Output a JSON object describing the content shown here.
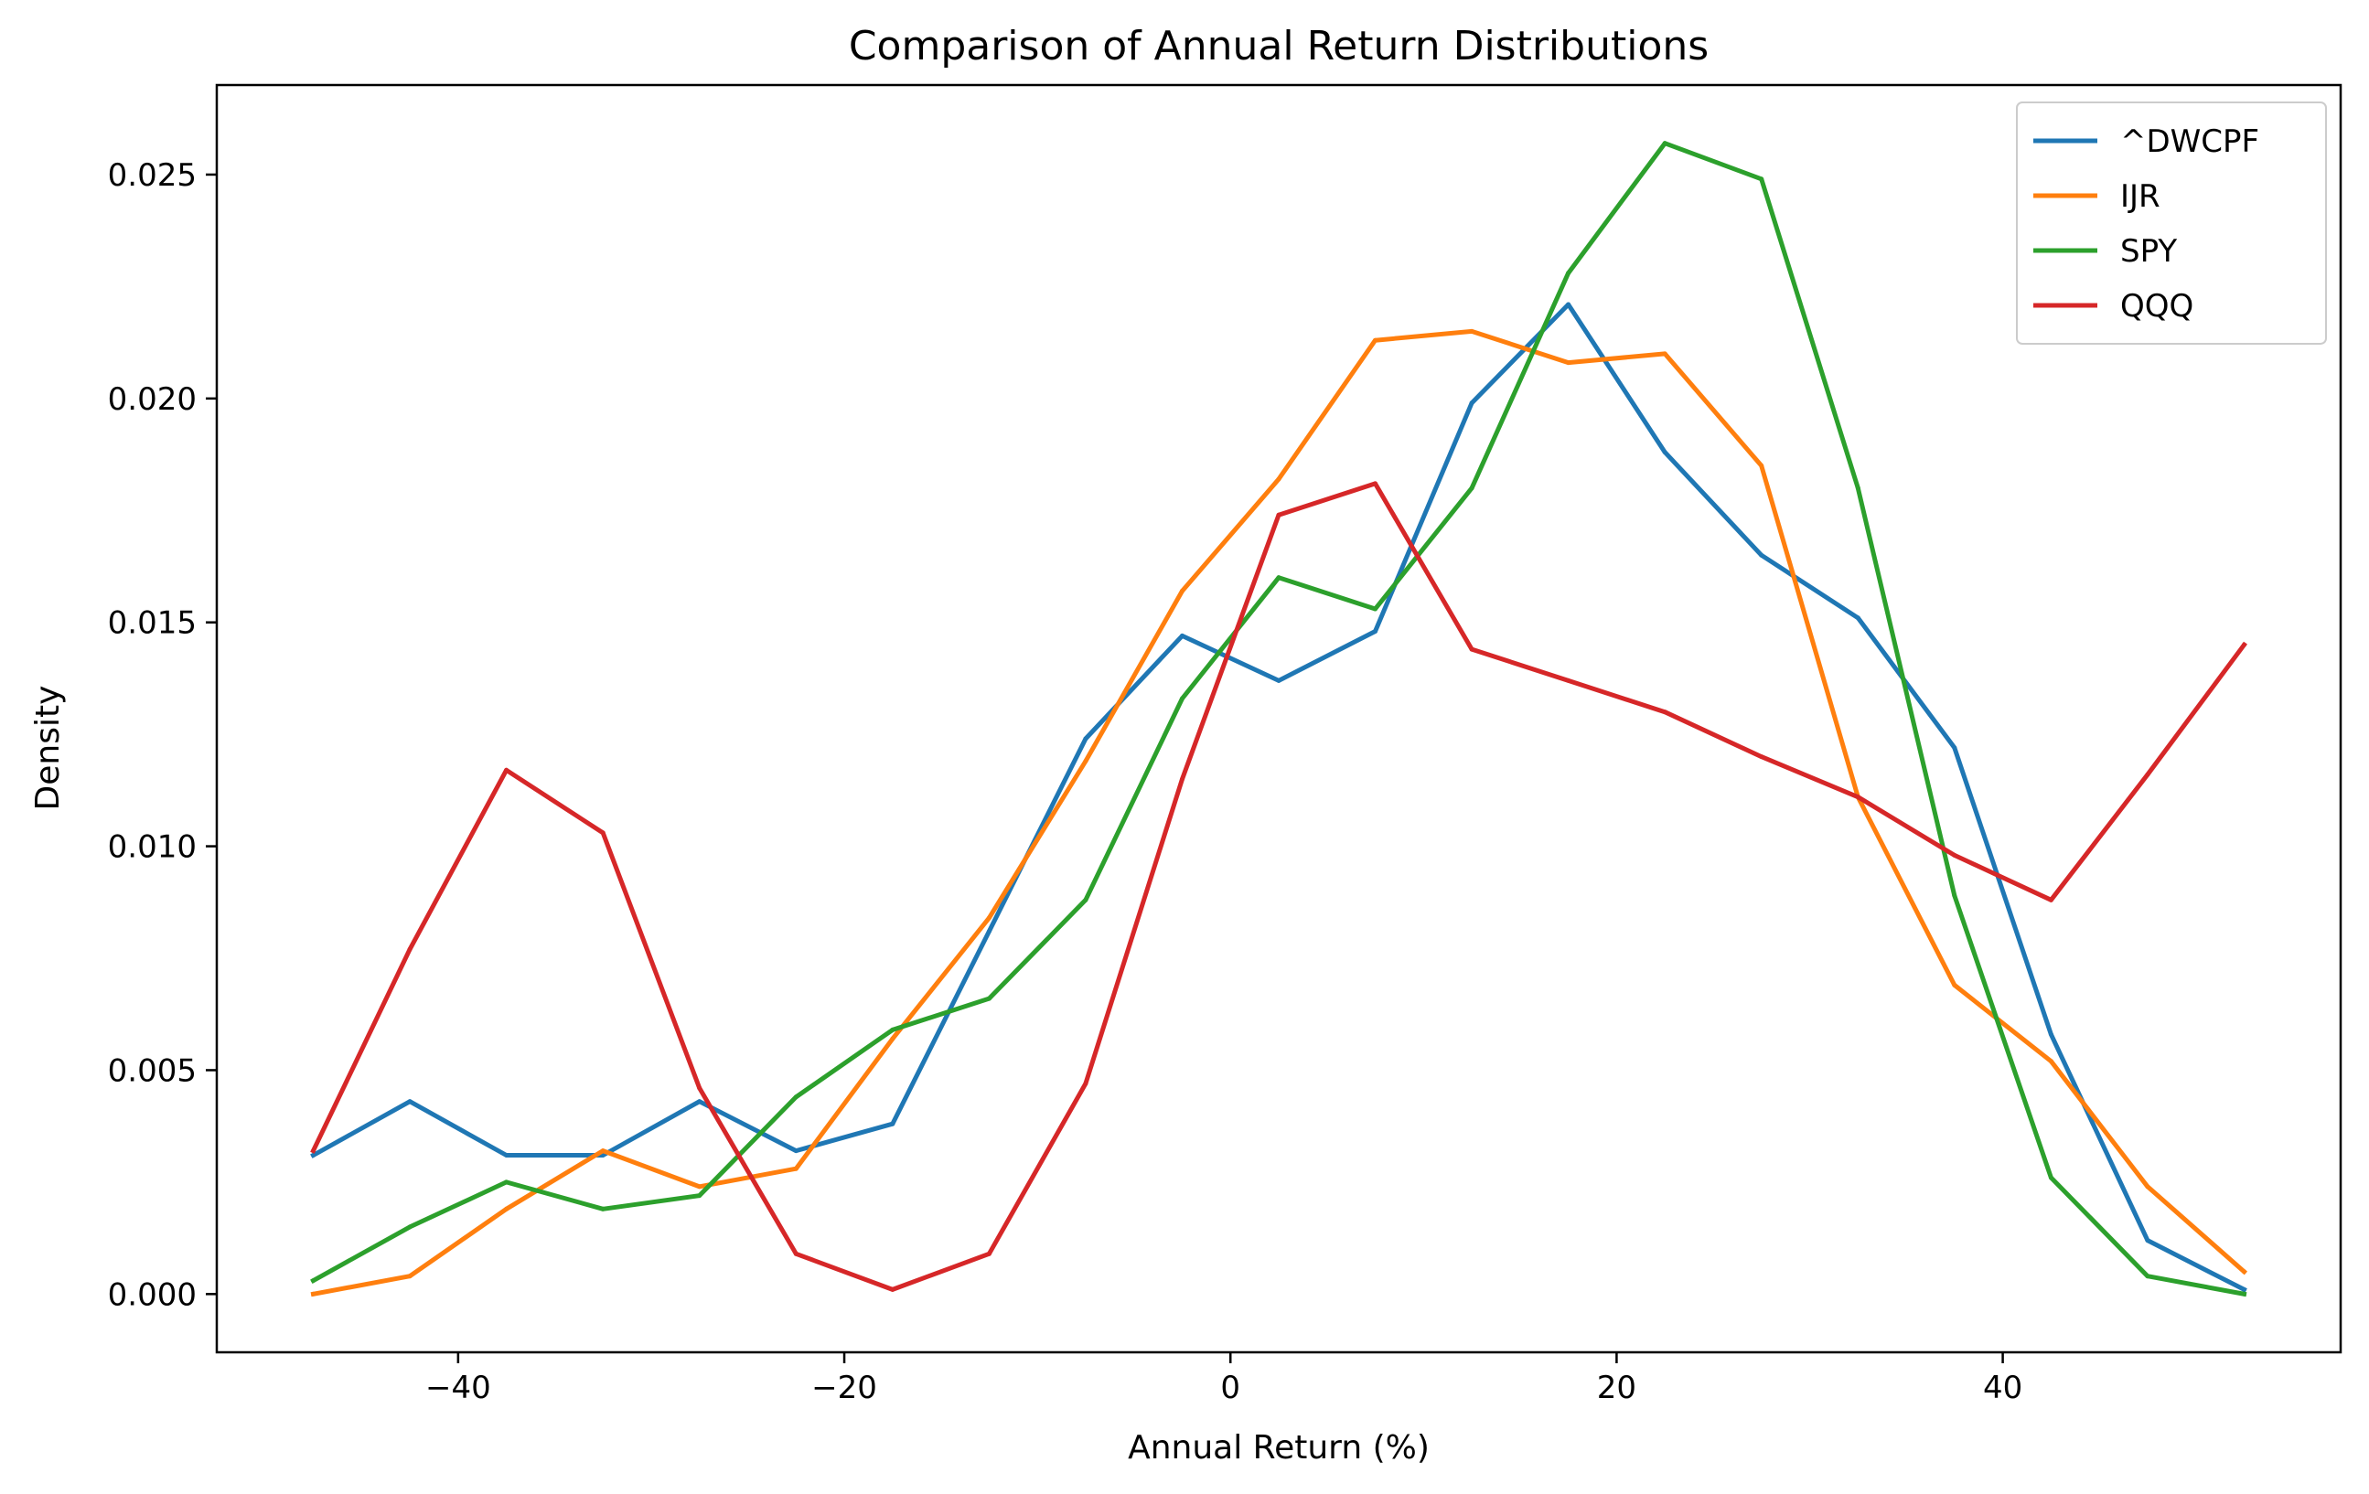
{
  "chart_data": {
    "type": "line",
    "title": "Comparison of Annual Return Distributions",
    "xlabel": "Annual Return (%)",
    "ylabel": "Density",
    "xlim": [
      -52.5,
      57.5
    ],
    "ylim": [
      -0.0013,
      0.027
    ],
    "xticks": [
      -40,
      -20,
      0,
      20,
      40
    ],
    "xtick_labels": [
      "−40",
      "−20",
      "0",
      "20",
      "40"
    ],
    "yticks": [
      0.0,
      0.005,
      0.01,
      0.015,
      0.02,
      0.025
    ],
    "ytick_labels": [
      "0.000",
      "0.005",
      "0.010",
      "0.015",
      "0.020",
      "0.025"
    ],
    "grid": false,
    "legend_position": "top-right",
    "x": [
      -47.5,
      -42.5,
      -37.5,
      -32.5,
      -27.5,
      -22.5,
      -17.5,
      -12.5,
      -7.5,
      -2.5,
      2.5,
      7.5,
      12.5,
      17.5,
      22.5,
      27.5,
      32.5,
      37.5,
      42.5,
      47.5,
      52.5
    ],
    "series": [
      {
        "name": "^DWCPF",
        "color": "#1f77b4",
        "values": [
          0.0031,
          0.0043,
          0.0031,
          0.0031,
          0.0043,
          0.0032,
          0.0038,
          0.0081,
          0.0124,
          0.0147,
          0.0137,
          0.0148,
          0.0199,
          0.0221,
          0.0188,
          0.0165,
          0.0151,
          0.0122,
          0.0058,
          0.0012,
          0.0001
        ]
      },
      {
        "name": "IJR",
        "color": "#ff7f0e",
        "values": [
          0.0,
          0.0004,
          0.0019,
          0.0032,
          0.0024,
          0.0028,
          0.0057,
          0.0084,
          0.0119,
          0.0157,
          0.0182,
          0.0213,
          0.0215,
          0.0208,
          0.021,
          0.0185,
          0.0111,
          0.0069,
          0.0052,
          0.0024,
          0.0005
        ]
      },
      {
        "name": "SPY",
        "color": "#2ca02c",
        "values": [
          0.0003,
          0.0015,
          0.0025,
          0.0019,
          0.0022,
          0.0044,
          0.0059,
          0.0066,
          0.0088,
          0.0133,
          0.016,
          0.0153,
          0.018,
          0.0228,
          0.0257,
          0.0249,
          0.018,
          0.0089,
          0.0026,
          0.0004,
          0.0
        ]
      },
      {
        "name": "QQQ",
        "color": "#d62728",
        "values": [
          0.0032,
          0.0077,
          0.0117,
          0.0103,
          0.0046,
          0.0009,
          0.0001,
          0.0009,
          0.0047,
          0.0115,
          0.0174,
          0.0181,
          0.0144,
          0.0137,
          0.013,
          0.012,
          0.0111,
          0.0098,
          0.0088,
          0.0116,
          0.0145
        ]
      }
    ]
  }
}
